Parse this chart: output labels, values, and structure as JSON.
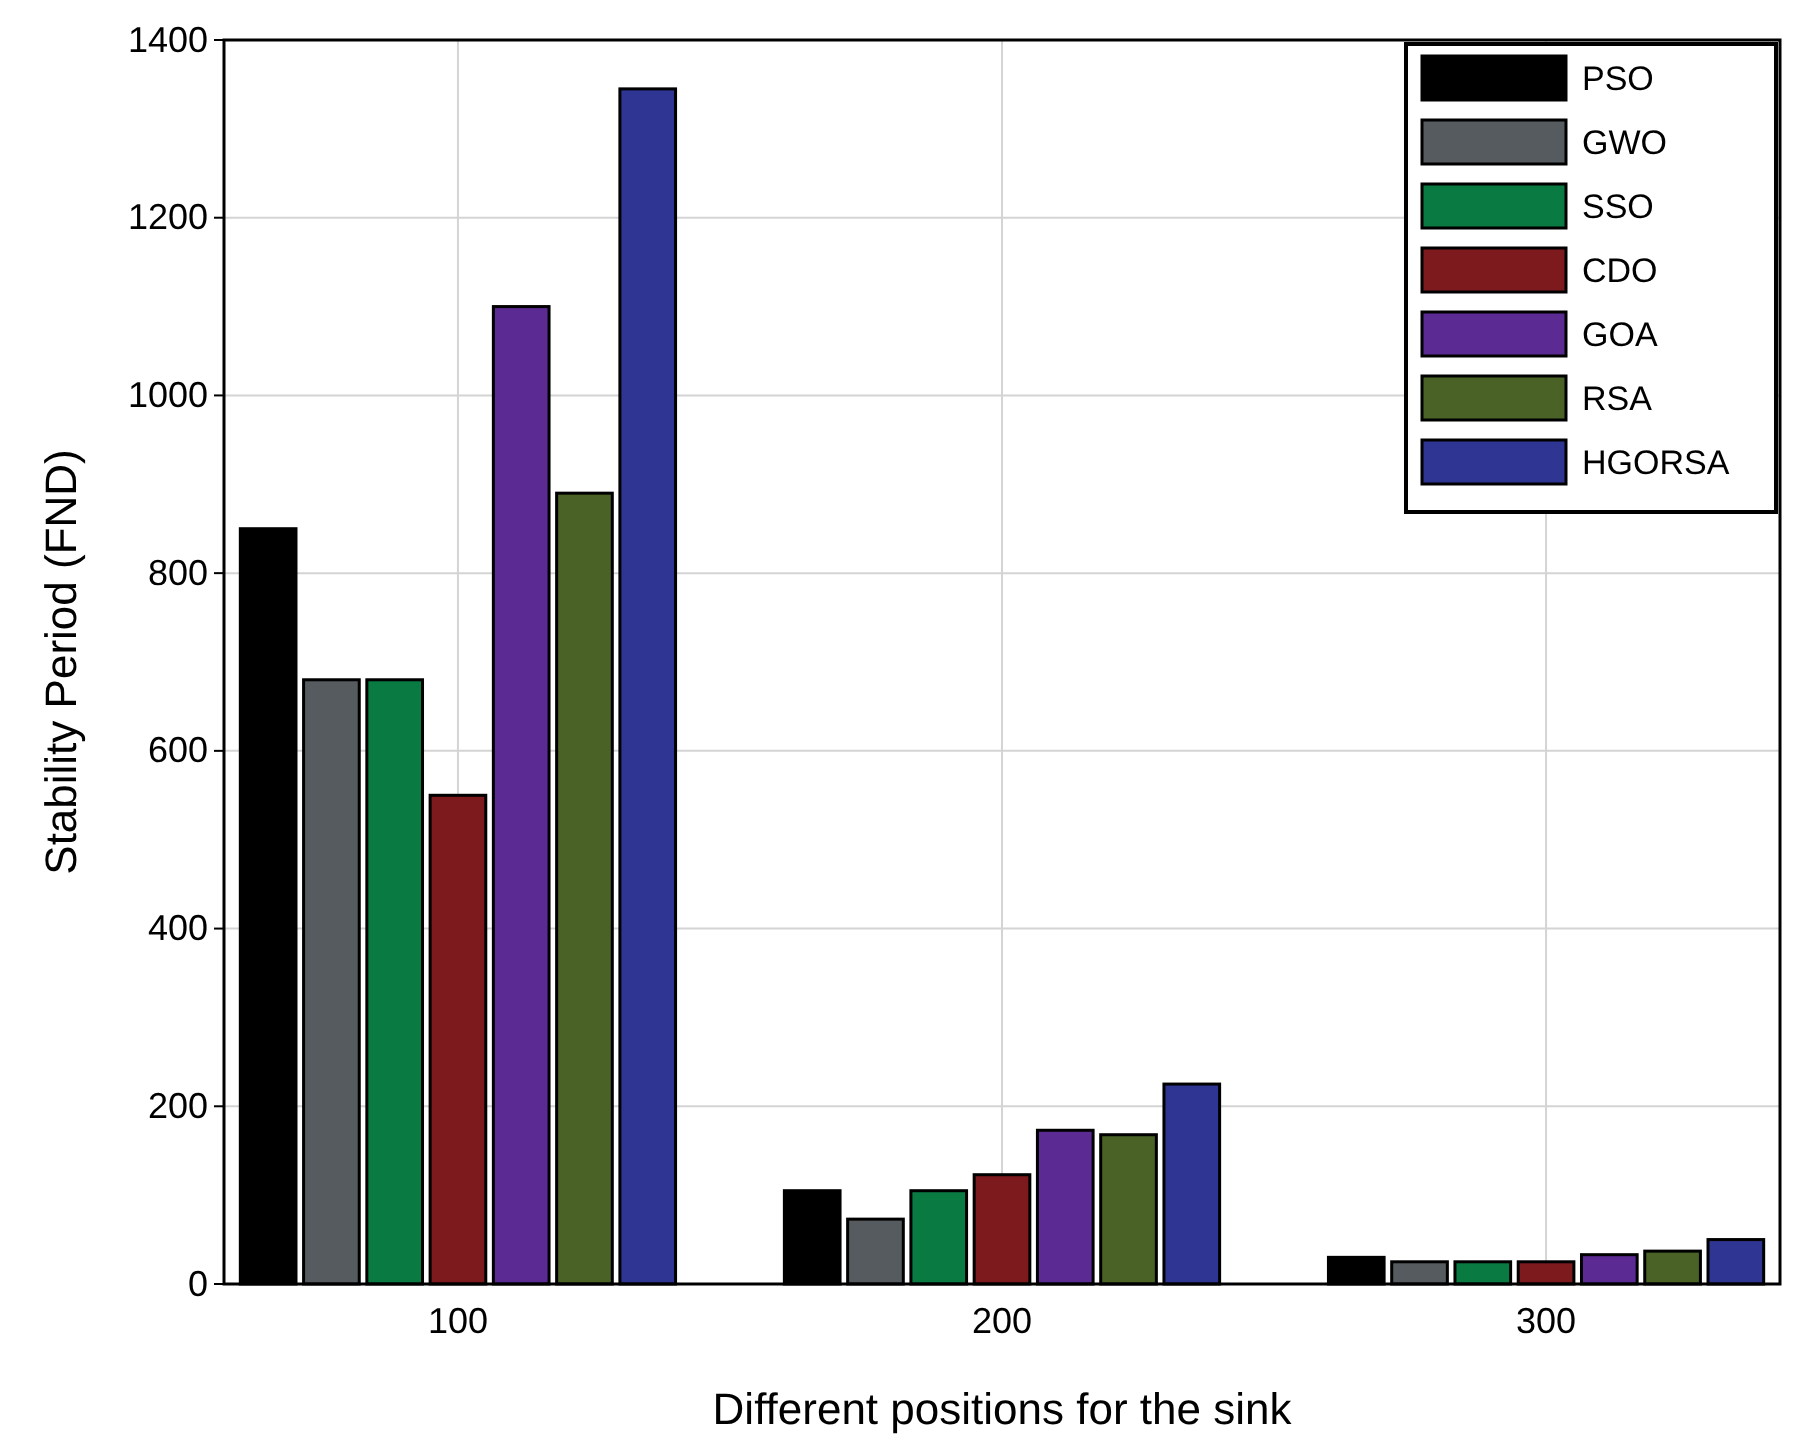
{
  "chart_data": {
    "type": "bar",
    "xlabel": "Different positions for the sink",
    "ylabel": "Stability Period (FND)",
    "categories": [
      "100",
      "200",
      "300"
    ],
    "series": [
      {
        "name": "PSO",
        "color": "#000000",
        "values": [
          850,
          105,
          30
        ]
      },
      {
        "name": "GWO",
        "color": "#555b5e",
        "values": [
          680,
          73,
          25
        ]
      },
      {
        "name": "SSO",
        "color": "#0a7a43",
        "values": [
          680,
          105,
          25
        ]
      },
      {
        "name": "CDO",
        "color": "#7c1a1e",
        "values": [
          550,
          123,
          25
        ]
      },
      {
        "name": "GOA",
        "color": "#5b2a92",
        "values": [
          1100,
          173,
          33
        ]
      },
      {
        "name": "RSA",
        "color": "#4a6226",
        "values": [
          890,
          168,
          37
        ]
      },
      {
        "name": "HGORSA",
        "color": "#2e3592",
        "values": [
          1345,
          225,
          50
        ]
      }
    ],
    "ylim": [
      0,
      1400
    ],
    "yticks": [
      0,
      200,
      400,
      600,
      800,
      1000,
      1200,
      1400
    ],
    "grid": true,
    "legend": "top right"
  }
}
